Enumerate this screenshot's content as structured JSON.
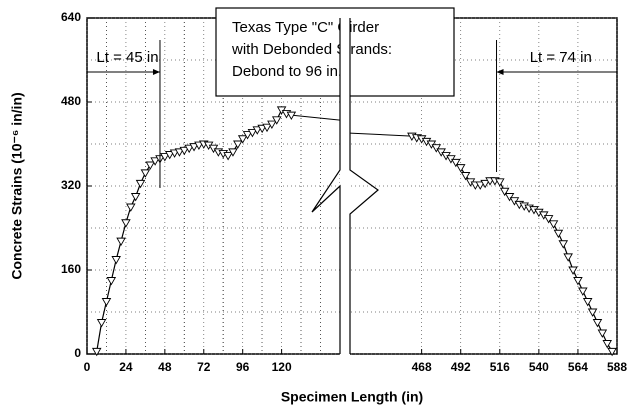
{
  "chart_data": {
    "type": "line",
    "title": [
      "Texas Type \"C\" Girder",
      "with Debonded Strands:",
      "Debond  to  96 in."
    ],
    "x_label": "Specimen Length (in)",
    "y_label": "Concrete Strains (10⁻⁶ in/in)",
    "ylim": [
      0,
      640
    ],
    "yticks": [
      0,
      160,
      320,
      480,
      640
    ],
    "grid": true,
    "color": "#000000",
    "panels": [
      {
        "xlim": [
          0,
          156
        ],
        "xticks": [
          0,
          24,
          48,
          72,
          96,
          120
        ],
        "series": [
          {
            "x": [
              6,
              9,
              12,
              15,
              18,
              21,
              24,
              27,
              30,
              33,
              36,
              39,
              42,
              45,
              48,
              51,
              54,
              57,
              60,
              63,
              66,
              69,
              72,
              75,
              78,
              81,
              84,
              87,
              90,
              93,
              96,
              99,
              102,
              105,
              108,
              111,
              114,
              117,
              120,
              123,
              126
            ],
            "values": [
              5,
              60,
              100,
              140,
              180,
              215,
              250,
              280,
              300,
              325,
              345,
              360,
              368,
              372,
              376,
              380,
              383,
              385,
              388,
              392,
              395,
              398,
              400,
              398,
              392,
              385,
              382,
              378,
              385,
              400,
              410,
              418,
              422,
              427,
              430,
              432,
              438,
              446,
              465,
              458,
              455
            ]
          }
        ]
      },
      {
        "xlim": [
          424,
          588
        ],
        "xticks": [
          468,
          492,
          516,
          540,
          564,
          588
        ],
        "series": [
          {
            "x": [
              462,
              465,
              468,
              471,
              474,
              477,
              480,
              483,
              486,
              489,
              492,
              495,
              498,
              501,
              504,
              507,
              510,
              513,
              516,
              519,
              522,
              525,
              528,
              531,
              534,
              537,
              540,
              543,
              546,
              549,
              552,
              555,
              558,
              561,
              564,
              567,
              570,
              573,
              576,
              579,
              582,
              585
            ],
            "values": [
              415,
              412,
              410,
              405,
              400,
              393,
              385,
              378,
              372,
              365,
              355,
              340,
              328,
              322,
              322,
              325,
              330,
              330,
              328,
              310,
              300,
              292,
              285,
              282,
              278,
              275,
              270,
              265,
              258,
              248,
              230,
              210,
              185,
              160,
              140,
              120,
              100,
              80,
              60,
              40,
              20,
              5
            ]
          }
        ]
      }
    ],
    "annotations": [
      {
        "text": "Lt = 45 in",
        "value": 45
      },
      {
        "text": "Lt = 74 in",
        "value": 74
      }
    ]
  }
}
